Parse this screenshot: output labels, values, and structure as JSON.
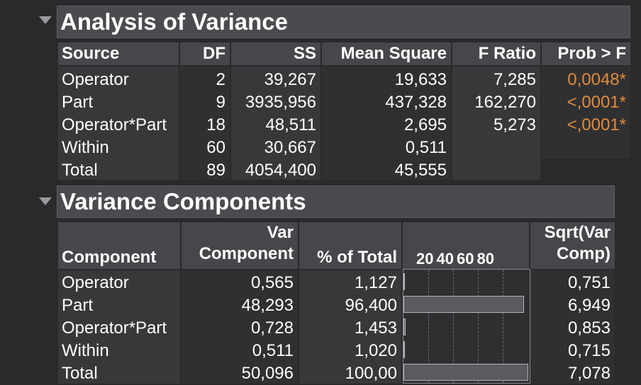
{
  "anova": {
    "title": "Analysis of Variance",
    "headers": [
      "Source",
      "DF",
      "SS",
      "Mean Square",
      "F Ratio",
      "Prob > F"
    ],
    "rows": [
      {
        "source": "Operator",
        "df": "2",
        "ss": "39,267",
        "ms": "19,633",
        "f": "7,285",
        "p": "0,0048*"
      },
      {
        "source": "Part",
        "df": "9",
        "ss": "3935,956",
        "ms": "437,328",
        "f": "162,270",
        "p": "<,0001*"
      },
      {
        "source": "Operator*Part",
        "df": "18",
        "ss": "48,511",
        "ms": "2,695",
        "f": "5,273",
        "p": "<,0001*"
      },
      {
        "source": "Within",
        "df": "60",
        "ss": "30,667",
        "ms": "0,511",
        "f": "",
        "p": ""
      },
      {
        "source": "Total",
        "df": "89",
        "ss": "4054,400",
        "ms": "45,555",
        "f": "",
        "p": ""
      }
    ]
  },
  "variance_components": {
    "title": "Variance Components",
    "headers": {
      "component": "Component",
      "var_component_line1": "Var",
      "var_component_line2": "Component",
      "pct_total": "% of Total",
      "axis_ticks": [
        "20",
        "40",
        "60",
        "80"
      ],
      "sqrt_line1": "Sqrt(Var",
      "sqrt_line2": "Comp)"
    },
    "rows": [
      {
        "component": "Operator",
        "var": "0,565",
        "pct": "1,127",
        "pct_value": 1.127,
        "sqrt": "0,751"
      },
      {
        "component": "Part",
        "var": "48,293",
        "pct": "96,400",
        "pct_value": 96.4,
        "sqrt": "6,949"
      },
      {
        "component": "Operator*Part",
        "var": "0,728",
        "pct": "1,453",
        "pct_value": 1.453,
        "sqrt": "0,853"
      },
      {
        "component": "Within",
        "var": "0,511",
        "pct": "1,020",
        "pct_value": 1.02,
        "sqrt": "0,715"
      },
      {
        "component": "Total",
        "var": "50,096",
        "pct": "100,00",
        "pct_value": 100.0,
        "sqrt": "7,078"
      }
    ]
  },
  "colors": {
    "significant": "#e08b3a"
  }
}
